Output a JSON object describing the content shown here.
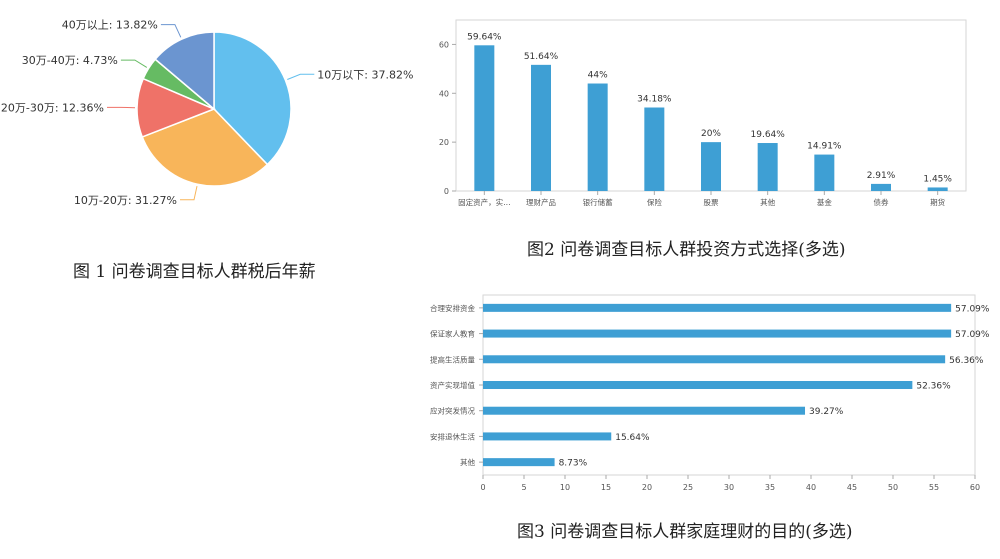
{
  "chart_data": [
    {
      "type": "pie",
      "caption": "图 1 问卷调查目标人群税后年薪",
      "slices": [
        {
          "label": "10万以下: 37.82%",
          "value": 37.82,
          "color": "#62bfee"
        },
        {
          "label": "10万-20万: 31.27%",
          "value": 31.27,
          "color": "#f8b55a"
        },
        {
          "label": "20万-30万: 12.36%",
          "value": 12.36,
          "color": "#ef7268"
        },
        {
          "label": "30万-40万: 4.73%",
          "value": 4.73,
          "color": "#66bb63"
        },
        {
          "label": "40万以上: 13.82%",
          "value": 13.82,
          "color": "#6b95d0"
        }
      ]
    },
    {
      "type": "bar",
      "caption": "图2 问卷调查目标人群投资方式选择(多选)",
      "categories": [
        "固定资产，实…",
        "理财产品",
        "银行储蓄",
        "保险",
        "股票",
        "其他",
        "基金",
        "债券",
        "期货"
      ],
      "values": [
        59.64,
        51.64,
        44,
        34.18,
        20,
        19.64,
        14.91,
        2.91,
        1.45
      ],
      "value_labels": [
        "59.64%",
        "51.64%",
        "44%",
        "34.18%",
        "20%",
        "19.64%",
        "14.91%",
        "2.91%",
        "1.45%"
      ],
      "ylim": [
        0,
        70
      ],
      "yticks": [
        "0",
        "20",
        "40",
        "60"
      ],
      "color": "#3e9fd4"
    },
    {
      "type": "bar",
      "orientation": "horizontal",
      "caption": "图3 问卷调查目标人群家庭理财的目的(多选)",
      "categories": [
        "合理安排资金",
        "保证家人教育",
        "提高生活质量",
        "资产实现增值",
        "应对突发情况",
        "安排退休生活",
        "其他"
      ],
      "values": [
        57.09,
        57.09,
        56.36,
        52.36,
        39.27,
        15.64,
        8.73
      ],
      "value_labels": [
        "57.09%",
        "57.09%",
        "56.36%",
        "52.36%",
        "39.27%",
        "15.64%",
        "8.73%"
      ],
      "xlim": [
        0,
        60
      ],
      "xticks": [
        "0",
        "5",
        "10",
        "15",
        "20",
        "25",
        "30",
        "35",
        "40",
        "45",
        "50",
        "55",
        "60"
      ],
      "color": "#3e9fd4"
    }
  ]
}
